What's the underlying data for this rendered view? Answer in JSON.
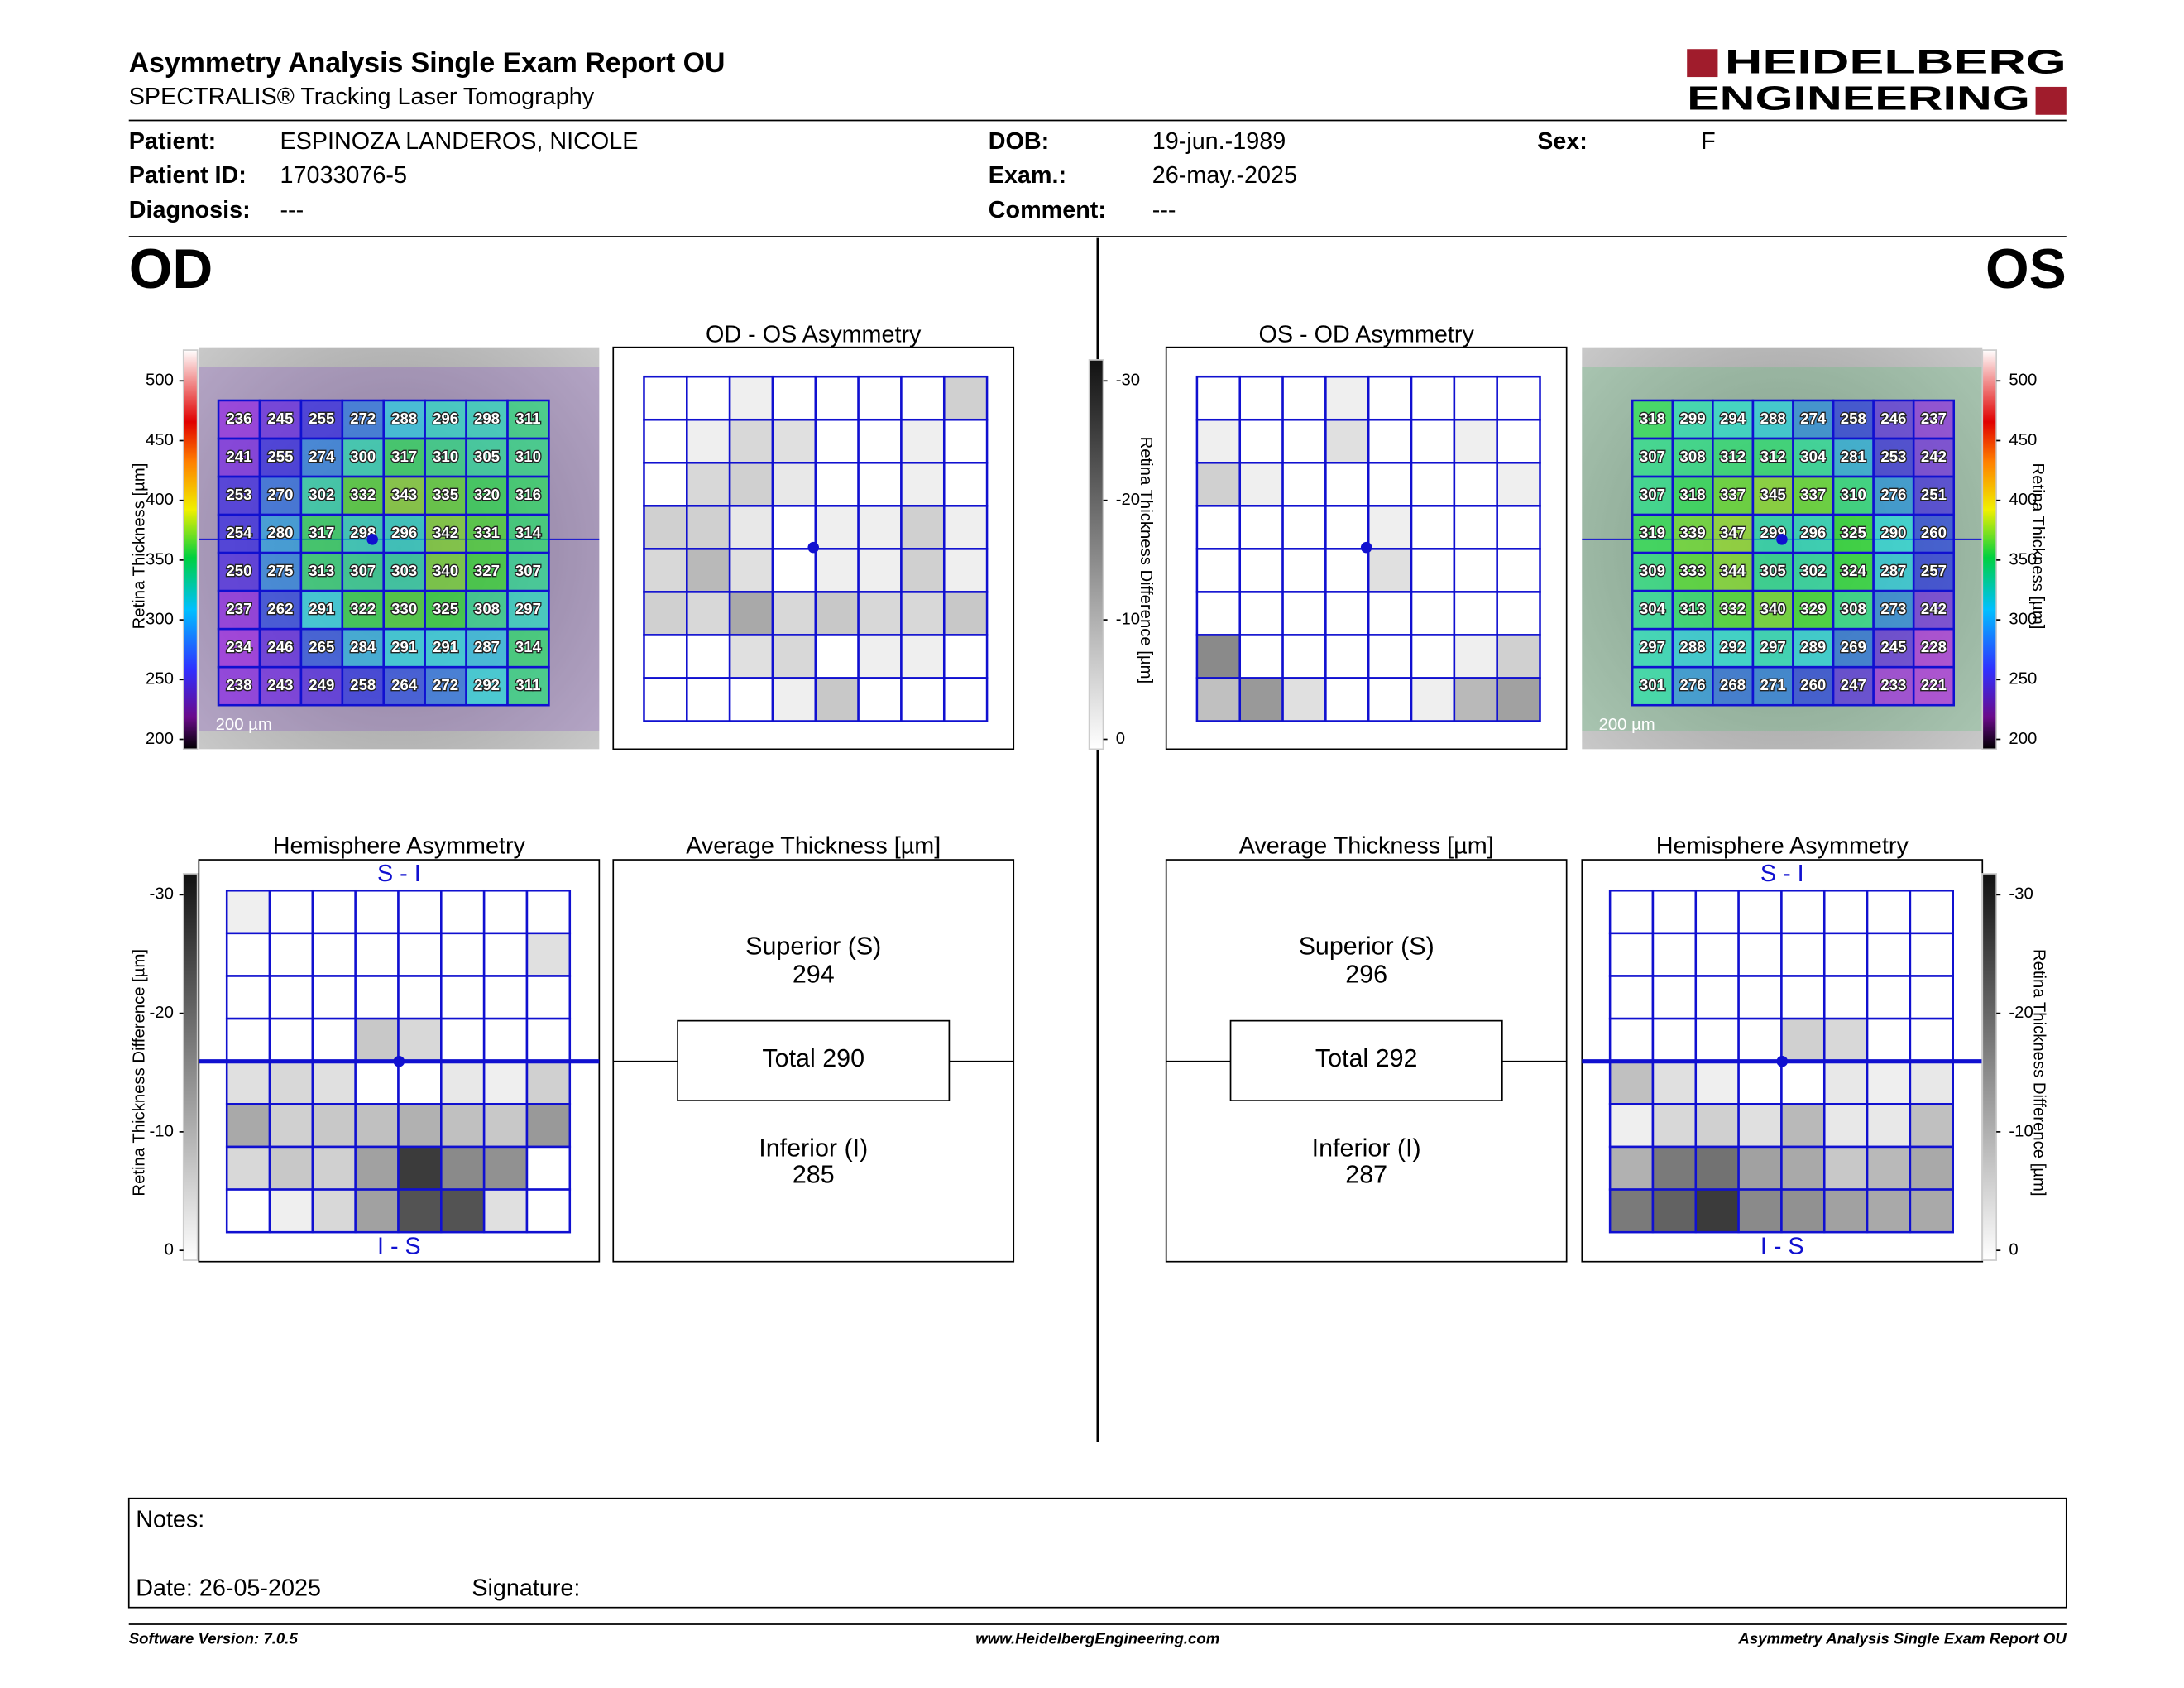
{
  "header": {
    "title": "Asymmetry Analysis Single Exam Report OU",
    "subtitle": "SPECTRALIS® Tracking Laser Tomography",
    "logo": {
      "line1": "HEIDELBERG",
      "line2": "ENGINEERING"
    }
  },
  "patient": {
    "fields": [
      {
        "label": "Patient:",
        "value": "ESPINOZA LANDEROS, NICOLE"
      },
      {
        "label": "Patient ID:",
        "value": "17033076-5"
      },
      {
        "label": "Diagnosis:",
        "value": "---"
      },
      {
        "label": "DOB:",
        "value": "19-jun.-1989"
      },
      {
        "label": "Exam.:",
        "value": "26-may.-2025"
      },
      {
        "label": "Comment:",
        "value": "---"
      },
      {
        "label": "Sex:",
        "value": "F"
      }
    ]
  },
  "thickness_scale": {
    "label": "Retina Thickness [µm]",
    "range": [
      200,
      500
    ],
    "ticks": [
      200,
      250,
      300,
      350,
      400,
      450,
      500
    ]
  },
  "difference_scale": {
    "label": "Retina Thickness Difference [µm]",
    "range": [
      0,
      -30
    ],
    "ticks": [
      0,
      -10,
      -20,
      -30
    ]
  },
  "od": {
    "eye": "OD",
    "scalebar": "200 µm",
    "thickness": [
      [
        236,
        245,
        255,
        272,
        288,
        296,
        298,
        311
      ],
      [
        241,
        255,
        274,
        300,
        317,
        310,
        305,
        310
      ],
      [
        253,
        270,
        302,
        332,
        343,
        335,
        320,
        316
      ],
      [
        254,
        280,
        317,
        298,
        296,
        342,
        331,
        314
      ],
      [
        250,
        275,
        313,
        307,
        303,
        340,
        327,
        307
      ],
      [
        237,
        262,
        291,
        322,
        330,
        325,
        308,
        297
      ],
      [
        234,
        246,
        265,
        284,
        291,
        291,
        287,
        314
      ],
      [
        238,
        243,
        249,
        258,
        264,
        272,
        292,
        311
      ]
    ],
    "asymmetry": {
      "title": "OD - OS Asymmetry",
      "grid": [
        [
          0,
          0,
          -2,
          0,
          0,
          0,
          0,
          -6
        ],
        [
          0,
          -2,
          -5,
          -4,
          0,
          0,
          -2,
          0
        ],
        [
          0,
          -5,
          -6,
          -3,
          0,
          0,
          -2,
          0
        ],
        [
          -6,
          -6,
          -3,
          0,
          -2,
          -2,
          -6,
          -2
        ],
        [
          -5,
          -9,
          -4,
          0,
          -2,
          -2,
          -6,
          -2
        ],
        [
          -6,
          -5,
          -11,
          -5,
          -7,
          -5,
          -5,
          -7
        ],
        [
          0,
          0,
          -4,
          -5,
          0,
          -2,
          -2,
          0
        ],
        [
          0,
          0,
          0,
          -2,
          -7,
          0,
          0,
          0
        ]
      ]
    },
    "hemisphere": {
      "title": "Hemisphere Asymmetry",
      "top_label": "S - I",
      "bottom_label": "I - S",
      "grid": [
        [
          -2,
          0,
          0,
          0,
          0,
          0,
          0,
          0
        ],
        [
          0,
          0,
          0,
          0,
          0,
          0,
          0,
          -4
        ],
        [
          0,
          0,
          0,
          0,
          0,
          0,
          0,
          0
        ],
        [
          0,
          0,
          0,
          -7,
          -5,
          0,
          0,
          0
        ],
        [
          -4,
          -5,
          -4,
          0,
          0,
          -3,
          -2,
          -6
        ],
        [
          -11,
          -6,
          -7,
          -8,
          -10,
          -8,
          -7,
          -13
        ],
        [
          -5,
          -7,
          -6,
          -12,
          -25,
          -15,
          -14,
          0
        ],
        [
          0,
          -2,
          -5,
          -12,
          -22,
          -22,
          -4,
          0
        ]
      ]
    },
    "average": {
      "title": "Average Thickness [µm]",
      "superior_label": "Superior (S)",
      "superior": 294,
      "total_label": "Total",
      "total": 290,
      "inferior_label": "Inferior (I)",
      "inferior": 285
    }
  },
  "os": {
    "eye": "OS",
    "scalebar": "200 µm",
    "thickness": [
      [
        318,
        299,
        294,
        288,
        274,
        258,
        246,
        237
      ],
      [
        307,
        308,
        312,
        312,
        304,
        281,
        253,
        242
      ],
      [
        307,
        318,
        337,
        345,
        337,
        310,
        276,
        251
      ],
      [
        319,
        339,
        347,
        299,
        296,
        325,
        290,
        260
      ],
      [
        309,
        333,
        344,
        305,
        302,
        324,
        287,
        257
      ],
      [
        304,
        313,
        332,
        340,
        329,
        308,
        273,
        242
      ],
      [
        297,
        288,
        292,
        297,
        289,
        269,
        245,
        228
      ],
      [
        301,
        276,
        268,
        271,
        260,
        247,
        233,
        221
      ]
    ],
    "asymmetry": {
      "title": "OS - OD Asymmetry",
      "grid": [
        [
          0,
          0,
          0,
          -2,
          0,
          0,
          0,
          0
        ],
        [
          -2,
          0,
          0,
          -4,
          0,
          0,
          -2,
          0
        ],
        [
          -6,
          -2,
          0,
          0,
          0,
          0,
          0,
          -2
        ],
        [
          0,
          0,
          0,
          0,
          -2,
          0,
          0,
          0
        ],
        [
          0,
          0,
          0,
          0,
          -4,
          0,
          0,
          0
        ],
        [
          0,
          0,
          0,
          0,
          0,
          0,
          0,
          0
        ],
        [
          -15,
          0,
          0,
          0,
          0,
          0,
          -2,
          -6
        ],
        [
          -8,
          -13,
          -4,
          0,
          0,
          -2,
          -9,
          -12
        ]
      ]
    },
    "hemisphere": {
      "title": "Hemisphere Asymmetry",
      "top_label": "S - I",
      "bottom_label": "I - S",
      "grid": [
        [
          0,
          0,
          0,
          0,
          0,
          0,
          0,
          0
        ],
        [
          0,
          0,
          0,
          0,
          0,
          0,
          0,
          0
        ],
        [
          0,
          0,
          0,
          0,
          0,
          0,
          0,
          0
        ],
        [
          0,
          0,
          0,
          0,
          -6,
          -5,
          0,
          0
        ],
        [
          -8,
          -4,
          -2,
          0,
          0,
          -3,
          -2,
          -3
        ],
        [
          -2,
          -5,
          -6,
          -4,
          -9,
          -3,
          -3,
          -8
        ],
        [
          -10,
          -17,
          -18,
          -12,
          -11,
          -7,
          -9,
          -11
        ],
        [
          -17,
          -20,
          -25,
          -15,
          -14,
          -12,
          -11,
          -11
        ]
      ]
    },
    "average": {
      "title": "Average Thickness [µm]",
      "superior_label": "Superior (S)",
      "superior": 296,
      "total_label": "Total",
      "total": 292,
      "inferior_label": "Inferior (I)",
      "inferior": 287
    }
  },
  "notes": {
    "label": "Notes:",
    "date": "Date: 26-05-2025",
    "signature": "Signature:"
  },
  "footer": {
    "left": "Software Version: 7.0.5",
    "center": "www.HeidelbergEngineering.com",
    "right": "Asymmetry Analysis Single Exam Report OU"
  }
}
